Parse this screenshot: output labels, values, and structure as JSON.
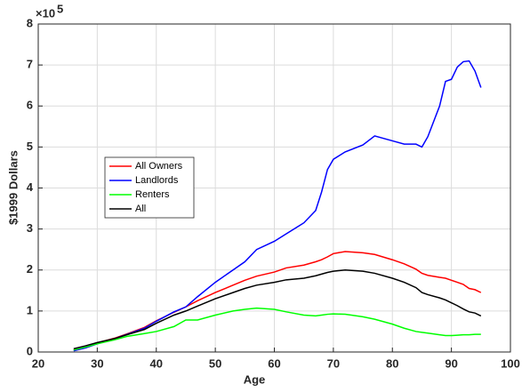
{
  "chart_data": {
    "type": "line",
    "xlabel": "Age",
    "ylabel": "$1999 Dollars",
    "y_multiplier": {
      "base": "×10",
      "exponent": "5"
    },
    "x": [
      26,
      28,
      30,
      33,
      35,
      38,
      40,
      43,
      45,
      47,
      50,
      53,
      55,
      57,
      60,
      62,
      65,
      67,
      68,
      69,
      70,
      72,
      75,
      77,
      80,
      82,
      84,
      85,
      86,
      88,
      89,
      90,
      91,
      92,
      93,
      94,
      95
    ],
    "series": [
      {
        "name": "All Owners",
        "color": "#ff0000",
        "values": [
          0.05,
          0.12,
          0.22,
          0.34,
          0.44,
          0.6,
          0.76,
          0.97,
          1.1,
          1.25,
          1.45,
          1.63,
          1.75,
          1.85,
          1.95,
          2.05,
          2.12,
          2.2,
          2.25,
          2.32,
          2.4,
          2.45,
          2.42,
          2.38,
          2.25,
          2.15,
          2.02,
          1.92,
          1.87,
          1.82,
          1.8,
          1.75,
          1.7,
          1.65,
          1.55,
          1.52,
          1.45
        ]
      },
      {
        "name": "Landlords",
        "color": "#0000ff",
        "values": [
          0.03,
          0.1,
          0.2,
          0.33,
          0.43,
          0.58,
          0.75,
          0.98,
          1.1,
          1.35,
          1.7,
          2.0,
          2.2,
          2.5,
          2.7,
          2.88,
          3.15,
          3.45,
          3.9,
          4.45,
          4.7,
          4.88,
          5.05,
          5.27,
          5.15,
          5.07,
          5.07,
          5.0,
          5.25,
          6.0,
          6.6,
          6.65,
          6.95,
          7.08,
          7.1,
          6.85,
          6.45
        ]
      },
      {
        "name": "Renters",
        "color": "#00ff00",
        "values": [
          0.05,
          0.12,
          0.2,
          0.3,
          0.38,
          0.45,
          0.5,
          0.62,
          0.78,
          0.78,
          0.9,
          1.0,
          1.04,
          1.07,
          1.04,
          0.98,
          0.9,
          0.88,
          0.9,
          0.92,
          0.93,
          0.92,
          0.86,
          0.8,
          0.68,
          0.58,
          0.5,
          0.48,
          0.46,
          0.42,
          0.4,
          0.4,
          0.41,
          0.42,
          0.42,
          0.43,
          0.43
        ]
      },
      {
        "name": "All",
        "color": "#000000",
        "values": [
          0.08,
          0.15,
          0.23,
          0.33,
          0.42,
          0.55,
          0.7,
          0.9,
          1.0,
          1.12,
          1.3,
          1.45,
          1.55,
          1.63,
          1.7,
          1.76,
          1.8,
          1.86,
          1.9,
          1.94,
          1.97,
          2.0,
          1.97,
          1.92,
          1.8,
          1.7,
          1.57,
          1.45,
          1.4,
          1.32,
          1.27,
          1.2,
          1.13,
          1.05,
          0.98,
          0.95,
          0.88
        ]
      }
    ],
    "xlim": [
      20,
      100
    ],
    "xticks": [
      20,
      30,
      40,
      50,
      60,
      70,
      80,
      90,
      100
    ],
    "ylim": [
      0,
      8
    ],
    "yticks": [
      0,
      1,
      2,
      3,
      4,
      5,
      6,
      7,
      8
    ],
    "grid": true,
    "legend": "left"
  }
}
